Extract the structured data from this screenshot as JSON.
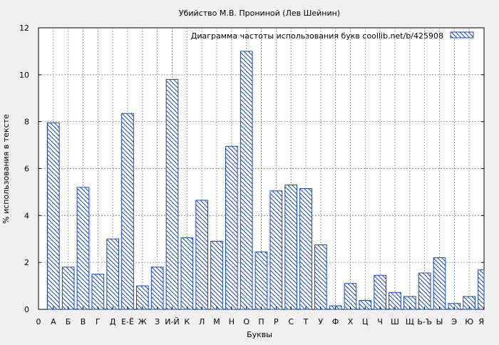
{
  "chart_data": {
    "type": "bar",
    "title": "Убийство М.В. Прониной (Лев Шейнин)",
    "xlabel": "Буквы",
    "ylabel": "% использования в тексте",
    "legend_label": "Диаграмма частоты использования букв  coollib.net/b/425908",
    "legend_position": "top-right",
    "grid": true,
    "ylim": [
      0,
      12
    ],
    "yticks": [
      "0",
      "2",
      "4",
      "6",
      "8",
      "10",
      "12"
    ],
    "x_tick_first": "0",
    "categories": [
      "А",
      "Б",
      "В",
      "Г",
      "Д",
      "Е-Ё",
      "Ж",
      "З",
      "И-Й",
      "К",
      "Л",
      "М",
      "Н",
      "О",
      "П",
      "Р",
      "С",
      "Т",
      "У",
      "Ф",
      "Х",
      "Ц",
      "Ч",
      "Ш",
      "Щ",
      "Ь-Ъ",
      "Ы",
      "Э",
      "Ю",
      "Я"
    ],
    "values": [
      7.95,
      1.8,
      5.2,
      1.5,
      3.0,
      8.35,
      1.0,
      1.8,
      9.8,
      3.05,
      4.65,
      2.9,
      6.95,
      11.0,
      2.45,
      5.05,
      5.3,
      5.15,
      2.75,
      0.15,
      1.1,
      0.38,
      1.45,
      0.72,
      0.55,
      1.55,
      2.2,
      0.25,
      0.55,
      1.68
    ],
    "colors": {
      "bar_stroke": "#1a4aa8",
      "hatch": "#1a4aa8",
      "background": "#f0f0f0",
      "plot_bg": "#ffffff",
      "grid": "#9a9a9a"
    }
  }
}
